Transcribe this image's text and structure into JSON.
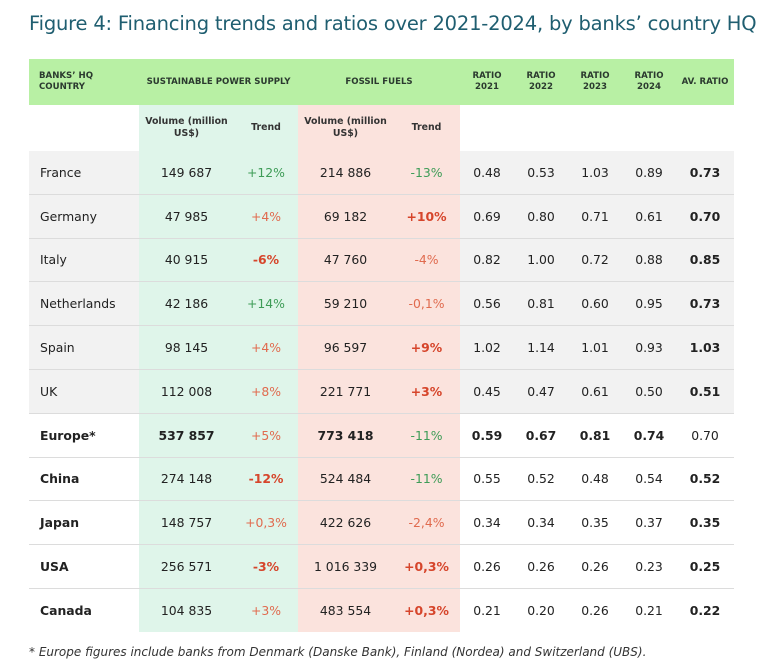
{
  "title": "Figure 4: Financing trends and ratios over 2021-2024, by banks’ country HQ",
  "header": {
    "country": "BANKS’ HQ COUNTRY",
    "sustainable": "SUSTAINABLE POWER SUPPLY",
    "fossil": "FOSSIL FUELS",
    "ratio2021": "RATIO 2021",
    "ratio2022": "RATIO 2022",
    "ratio2023": "RATIO 2023",
    "ratio2024": "RATIO 2024",
    "avratio": "AV. RATIO"
  },
  "subheader": {
    "volume": "Volume (million US$)",
    "trend": "Trend"
  },
  "colors": {
    "header_green": "#b8f0a4",
    "sustainable_bg": "#dff5ea",
    "fossil_bg": "#fbe3dd",
    "trend_up_green": "#3e9c57",
    "trend_red": "#d6452b"
  },
  "rows": [
    {
      "country": "France",
      "sp_volume": "149 687",
      "sp_trend": "+12%",
      "ff_volume": "214 886",
      "ff_trend": "-13%",
      "r2021": "0.48",
      "r2022": "0.53",
      "r2023": "1.03",
      "r2024": "0.89",
      "avg": "0.73"
    },
    {
      "country": "Germany",
      "sp_volume": "47 985",
      "sp_trend": "+4%",
      "ff_volume": "69 182",
      "ff_trend": "+10%",
      "r2021": "0.69",
      "r2022": "0.80",
      "r2023": "0.71",
      "r2024": "0.61",
      "avg": "0.70"
    },
    {
      "country": "Italy",
      "sp_volume": "40 915",
      "sp_trend": "-6%",
      "ff_volume": "47 760",
      "ff_trend": "-4%",
      "r2021": "0.82",
      "r2022": "1.00",
      "r2023": "0.72",
      "r2024": "0.88",
      "avg": "0.85"
    },
    {
      "country": "Netherlands",
      "sp_volume": "42 186",
      "sp_trend": "+14%",
      "ff_volume": "59 210",
      "ff_trend": "-0,1%",
      "r2021": "0.56",
      "r2022": "0.81",
      "r2023": "0.60",
      "r2024": "0.95",
      "avg": "0.73"
    },
    {
      "country": "Spain",
      "sp_volume": "98 145",
      "sp_trend": "+4%",
      "ff_volume": "96 597",
      "ff_trend": "+9%",
      "r2021": "1.02",
      "r2022": "1.14",
      "r2023": "1.01",
      "r2024": "0.93",
      "avg": "1.03"
    },
    {
      "country": "UK",
      "sp_volume": "112 008",
      "sp_trend": "+8%",
      "ff_volume": "221 771",
      "ff_trend": "+3%",
      "r2021": "0.45",
      "r2022": "0.47",
      "r2023": "0.61",
      "r2024": "0.50",
      "avg": "0.51"
    },
    {
      "country": "Europe*",
      "sp_volume": "537 857",
      "sp_trend": "+5%",
      "ff_volume": "773 418",
      "ff_trend": "-11%",
      "r2021": "0.59",
      "r2022": "0.67",
      "r2023": "0.81",
      "r2024": "0.74",
      "avg": "0.70"
    },
    {
      "country": "China",
      "sp_volume": "274 148",
      "sp_trend": "-12%",
      "ff_volume": "524 484",
      "ff_trend": "-11%",
      "r2021": "0.55",
      "r2022": "0.52",
      "r2023": "0.48",
      "r2024": "0.54",
      "avg": "0.52"
    },
    {
      "country": "Japan",
      "sp_volume": "148 757",
      "sp_trend": "+0,3%",
      "ff_volume": "422 626",
      "ff_trend": "-2,4%",
      "r2021": "0.34",
      "r2022": "0.34",
      "r2023": "0.35",
      "r2024": "0.37",
      "avg": "0.35"
    },
    {
      "country": "USA",
      "sp_volume": "256 571",
      "sp_trend": "-3%",
      "ff_volume": "1 016 339",
      "ff_trend": "+0,3%",
      "r2021": "0.26",
      "r2022": "0.26",
      "r2023": "0.26",
      "r2024": "0.23",
      "avg": "0.25"
    },
    {
      "country": "Canada",
      "sp_volume": "104 835",
      "sp_trend": "+3%",
      "ff_volume": "483 554",
      "ff_trend": "+0,3%",
      "r2021": "0.21",
      "r2022": "0.20",
      "r2023": "0.26",
      "r2024": "0.21",
      "avg": "0.22"
    }
  ],
  "footnote": "* Europe figures include banks from Denmark (Danske Bank), Finland (Nordea) and Switzerland (UBS)."
}
